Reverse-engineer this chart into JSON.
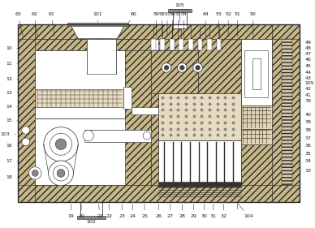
{
  "bg_color": "#f5f0e8",
  "line_color": "#2a2a2a",
  "fig_width": 3.88,
  "fig_height": 2.81,
  "dpi": 100
}
